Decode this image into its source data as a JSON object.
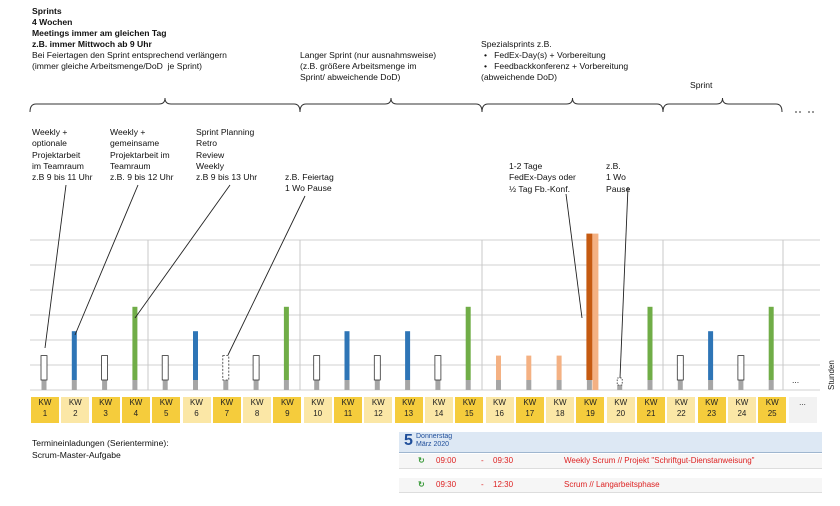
{
  "header": {
    "l1": "Sprints",
    "l2": "4 Wochen",
    "l3": "Meetings immer am gleichen Tag",
    "l4": "z.B. immer Mittwoch ab 9 Uhr",
    "l5": "Bei Feiertagen den Sprint entsprechend verlängern",
    "l6": "(immer gleiche Arbeitsmenge/DoD  je Sprint)"
  },
  "langer": {
    "l1": "Langer Sprint (nur ausnahmsweise)",
    "l2": "(z.B. größere Arbeitsmenge im",
    "l3": "Sprint/ abweichende DoD)"
  },
  "spezial": {
    "l1": "Spezialsprints z.B.",
    "b1": "FedEx-Day(s) + Vorbereitung",
    "b2": "Feedbackkonferenz + Vorbereitung",
    "l4": "(abweichende DoD)"
  },
  "sprint_label": "Sprint",
  "annotations": {
    "a1": "Weekly +\noptionale\nProjektarbeit\nim Teamraum\nz.B 9 bis 11 Uhr",
    "a2": "Weekly +\ngemeinsame\nProjektarbeit im\nTeamraum\nz.B. 9 bis 12 Uhr",
    "a3": "Sprint Planning\nRetro\nReview\nWeekly\nz.B 9 bis 13 Uhr",
    "a4": "z.B. Feiertag\n1 Wo Pause",
    "a5": "1-2 Tage\nFedEx-Days oder\n½ Tag Fb.-Konf.",
    "a6": "z.B.\n1 Wo\nPause"
  },
  "axis_label": "Stunden",
  "weeks": [
    {
      "kw": "KW",
      "n": "1"
    },
    {
      "kw": "KW",
      "n": "2"
    },
    {
      "kw": "KW",
      "n": "3"
    },
    {
      "kw": "KW",
      "n": "4"
    },
    {
      "kw": "KW",
      "n": "5"
    },
    {
      "kw": "KW",
      "n": "6"
    },
    {
      "kw": "KW",
      "n": "7"
    },
    {
      "kw": "KW",
      "n": "8"
    },
    {
      "kw": "KW",
      "n": "9"
    },
    {
      "kw": "KW",
      "n": "10"
    },
    {
      "kw": "KW",
      "n": "11"
    },
    {
      "kw": "KW",
      "n": "12"
    },
    {
      "kw": "KW",
      "n": "13"
    },
    {
      "kw": "KW",
      "n": "14"
    },
    {
      "kw": "KW",
      "n": "15"
    },
    {
      "kw": "KW",
      "n": "16"
    },
    {
      "kw": "KW",
      "n": "17"
    },
    {
      "kw": "KW",
      "n": "18"
    },
    {
      "kw": "KW",
      "n": "19"
    },
    {
      "kw": "KW",
      "n": "20"
    },
    {
      "kw": "KW",
      "n": "21"
    },
    {
      "kw": "KW",
      "n": "22"
    },
    {
      "kw": "KW",
      "n": "23"
    },
    {
      "kw": "KW",
      "n": "24"
    },
    {
      "kw": "KW",
      "n": "25"
    },
    {
      "kw": "...",
      "n": ""
    }
  ],
  "week_colors": {
    "dark": "#f5cc3c",
    "light": "#fbe7a6",
    "grey": "#f2f2f2"
  },
  "bars": {
    "heights_hours": [
      2,
      4,
      2,
      6,
      2,
      4,
      2,
      2,
      6,
      2,
      4,
      2,
      4,
      2,
      6,
      2,
      2,
      2,
      12,
      0,
      6,
      2,
      4,
      2,
      6
    ],
    "kinds": [
      "hollow",
      "blue",
      "hollow",
      "green",
      "hollow",
      "blue",
      "dashed",
      "hollow",
      "green",
      "hollow",
      "blue",
      "hollow",
      "blue",
      "hollow",
      "green",
      "peach",
      "peach",
      "peach",
      "orange",
      "pause",
      "green",
      "hollow",
      "blue",
      "hollow",
      "green"
    ],
    "colors": {
      "blue": "#2e75b6",
      "green": "#70ad47",
      "orange": "#c55a11",
      "peach": "#f4b183",
      "hollow": "#ffffff",
      "grey": "#a6a6a6"
    }
  },
  "more_marker": "...",
  "calendar": {
    "day": "5",
    "weekday": "Donnerstag",
    "month": "März 2020",
    "rows": [
      {
        "start": "09:00",
        "dash": "-",
        "end": "09:30",
        "title": "Weekly Scrum // Projekt \"Schriftgut-Dienstanweisung\""
      },
      {
        "start": "09:30",
        "dash": "-",
        "end": "12:30",
        "title": "Scrum // Langarbeitsphase"
      }
    ]
  },
  "footer": {
    "l1": "Termineinladungen (Serientermine):",
    "l2": "Scrum-Master-Aufgabe"
  }
}
